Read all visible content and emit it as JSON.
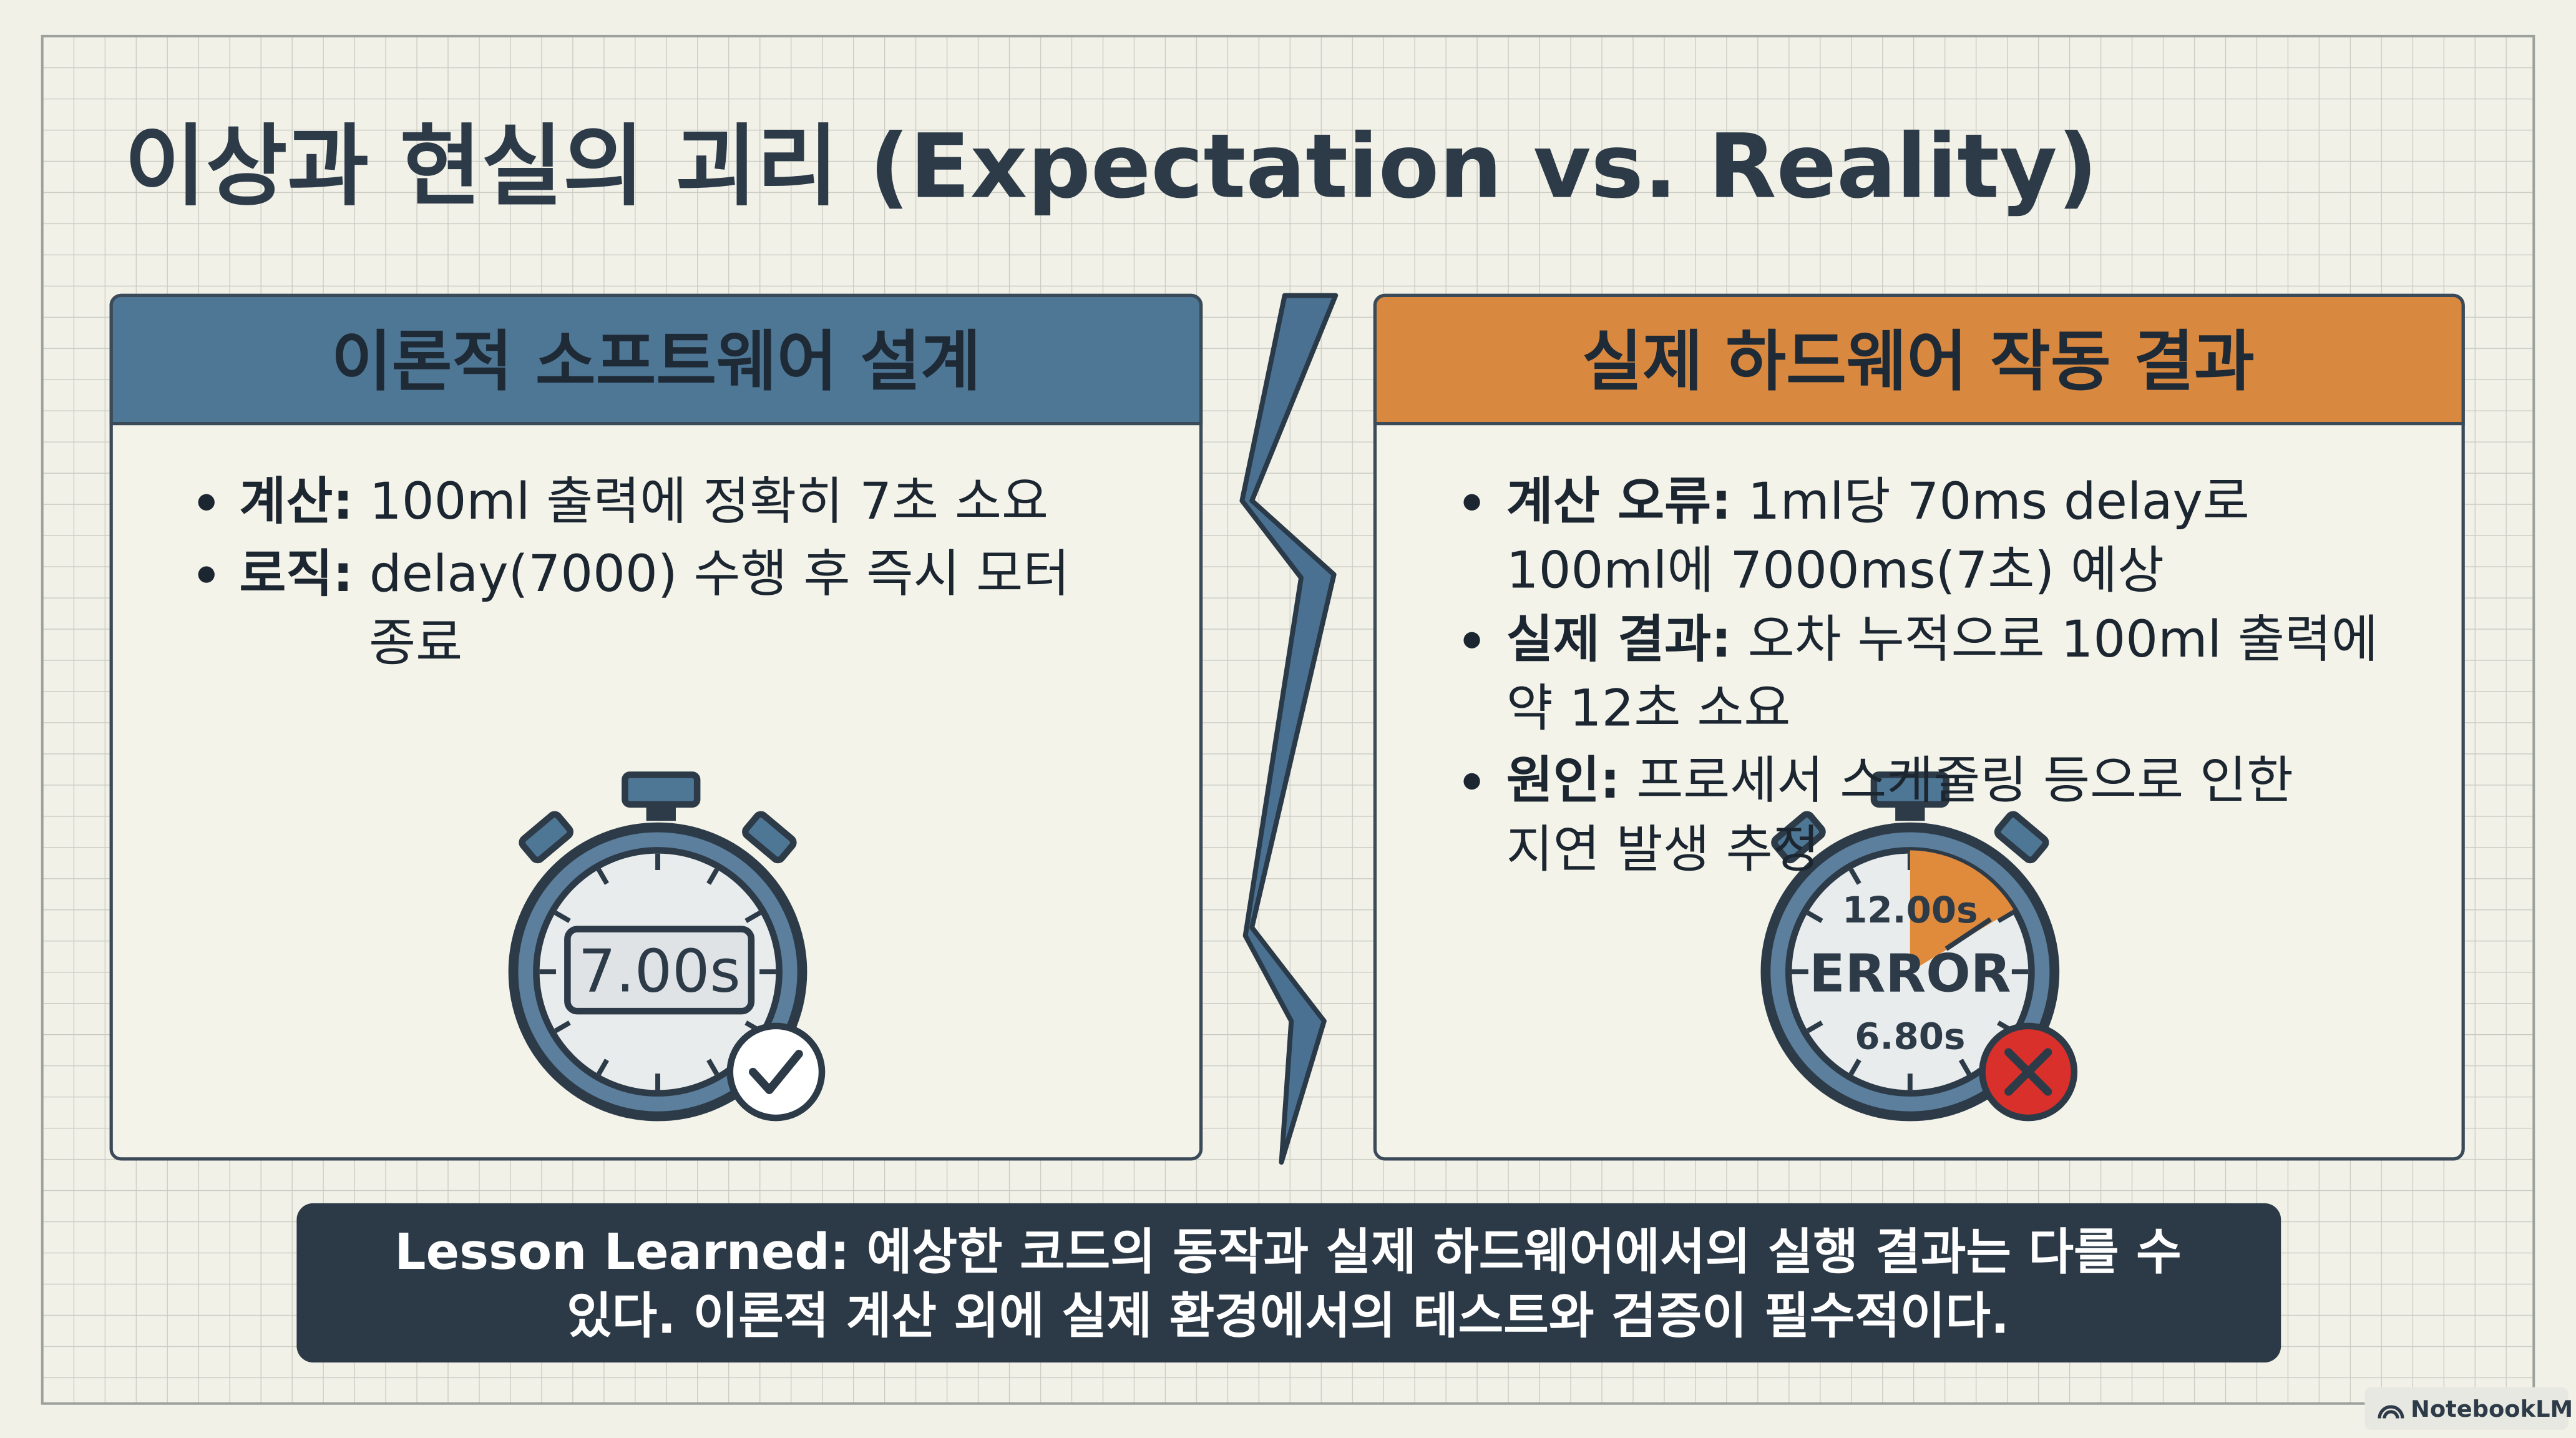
{
  "title": "이상과 현실의 괴리 (Expectation vs. Reality)",
  "panels": [
    {
      "header": "이론적 소프트웨어 설계",
      "bullets": [
        {
          "label": "계산:",
          "lines": [
            "100ml 출력에 정확히 7초 소요"
          ]
        },
        {
          "label": "로직:",
          "lines": [
            "delay(7000) 수행 후 즉시 모터",
            "종료"
          ]
        }
      ],
      "stopwatch": {
        "display": "7.00s"
      }
    },
    {
      "header": "실제 하드웨어 작동 결과",
      "bullets": [
        {
          "label": "계산 오류:",
          "lines": [
            "1ml당 70ms delay로",
            "100ml에 7000ms(7초) 예상"
          ]
        },
        {
          "label": "실제 결과:",
          "lines": [
            "오차 누적으로 100ml 출력에",
            "약 12초 소요"
          ]
        },
        {
          "label": "원인:",
          "lines": [
            "프로세서 스케줄링 등으로 인한",
            "지연 발생 추정"
          ]
        }
      ],
      "stopwatch": {
        "top": "12.00s",
        "display": "ERROR",
        "bottom": "6.80s"
      }
    }
  ],
  "lesson": {
    "lines": [
      "Lesson Learned: 예상한 코드의 동작과 실제 하드웨어에서의 실행 결과는 다를 수",
      "있다. 이론적 계산 외에 실제 환경에서의 테스트와 검증이 필수적이다."
    ]
  },
  "watermark": "NotebookLM"
}
